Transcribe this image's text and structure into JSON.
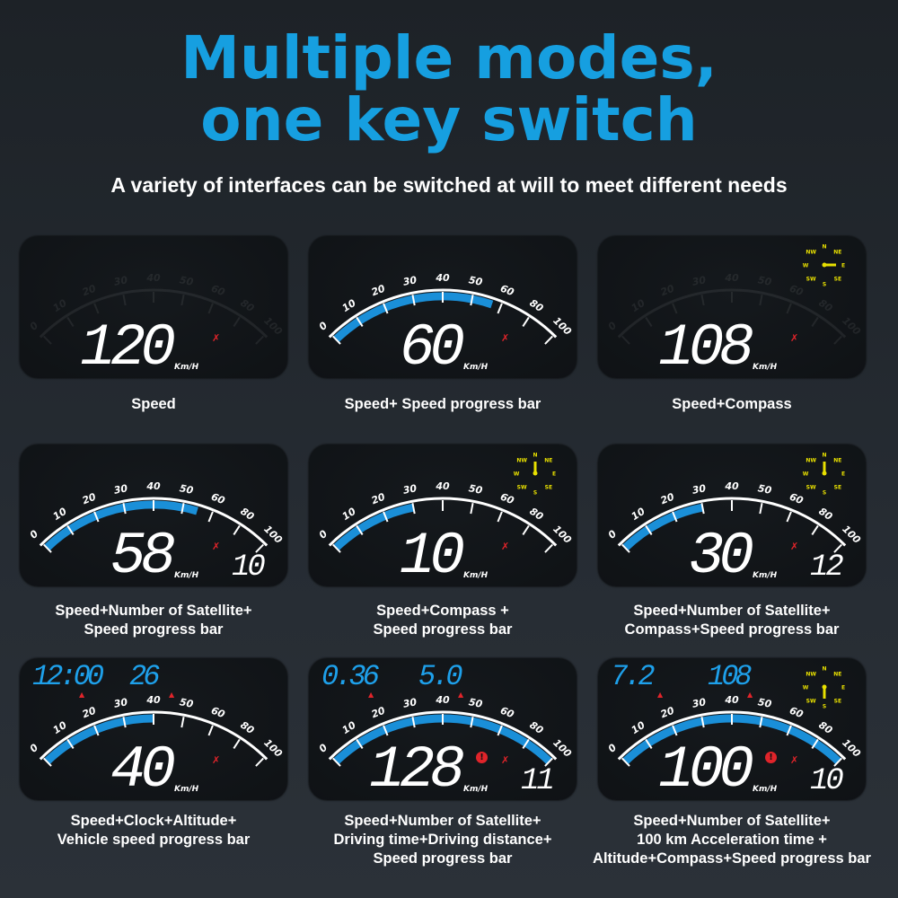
{
  "header": {
    "title_line1": "Multiple modes,",
    "title_line2": "one key switch",
    "subtitle": "A variety of interfaces can be switched at will to meet different needs"
  },
  "colors": {
    "title": "#169fe0",
    "progress": "#1a8fd8",
    "readout_blue": "#1ea0ea",
    "compass_yellow": "#e8e000",
    "alert_red": "#e0242a"
  },
  "scale_labels": [
    "0",
    "10",
    "20",
    "30",
    "40",
    "50",
    "60",
    "80",
    "100"
  ],
  "unit": "Km/H",
  "compass_labels": [
    "N",
    "NE",
    "E",
    "SE",
    "S",
    "SW",
    "W",
    "NW"
  ],
  "panels": [
    {
      "caption": [
        "Speed"
      ],
      "speed": "120",
      "progress_kmh": null,
      "satellites": null,
      "compass": false,
      "warning": false,
      "top": null
    },
    {
      "caption": [
        "Speed+ Speed progress bar"
      ],
      "speed": "60",
      "progress_kmh": 57,
      "satellites": null,
      "compass": false,
      "warning": false,
      "top": null
    },
    {
      "caption": [
        "Speed+Compass"
      ],
      "speed": "108",
      "progress_kmh": null,
      "satellites": null,
      "compass": true,
      "compass_heading": "E",
      "warning": false,
      "top": null
    },
    {
      "caption": [
        "Speed+Number of Satellite+",
        "Speed progress bar"
      ],
      "speed": "58",
      "progress_kmh": 55,
      "satellites": "10",
      "compass": false,
      "warning": false,
      "top": null
    },
    {
      "caption": [
        "Speed+Compass +",
        "Speed progress bar"
      ],
      "speed": "10",
      "progress_kmh": 30,
      "satellites": null,
      "compass": true,
      "compass_heading": "N",
      "warning": false,
      "top": null
    },
    {
      "caption": [
        "Speed+Number of Satellite+",
        "Compass+Speed progress bar"
      ],
      "speed": "30",
      "progress_kmh": 30,
      "satellites": "12",
      "compass": true,
      "compass_heading": "N",
      "warning": false,
      "top": null
    },
    {
      "caption": [
        "Speed+Clock+Altitude+",
        "Vehicle speed progress bar"
      ],
      "speed": "40",
      "progress_kmh": 40,
      "satellites": null,
      "compass": false,
      "warning": false,
      "top": [
        {
          "value": "12:00",
          "icon": "clock-icon"
        },
        {
          "value": "26",
          "icon": "altitude-icon"
        }
      ]
    },
    {
      "caption": [
        "Speed+Number of Satellite+",
        "Driving time+Driving distance+",
        "Speed progress bar"
      ],
      "speed": "128",
      "progress_kmh": 100,
      "satellites": "11",
      "compass": false,
      "warning": true,
      "top": [
        {
          "value": "0.36",
          "icon": "driving-time-icon"
        },
        {
          "value": "5.0",
          "icon": "driving-distance-icon"
        }
      ]
    },
    {
      "caption": [
        "Speed+Number of Satellite+",
        "100 km Acceleration time +",
        "Altitude+Compass+Speed progress bar"
      ],
      "speed": "100",
      "progress_kmh": 100,
      "satellites": "10",
      "compass": true,
      "compass_heading": "S",
      "warning": true,
      "top": [
        {
          "value": "7.2",
          "icon": "acceleration-icon"
        },
        {
          "value": "108",
          "icon": "altitude-icon"
        }
      ]
    }
  ]
}
